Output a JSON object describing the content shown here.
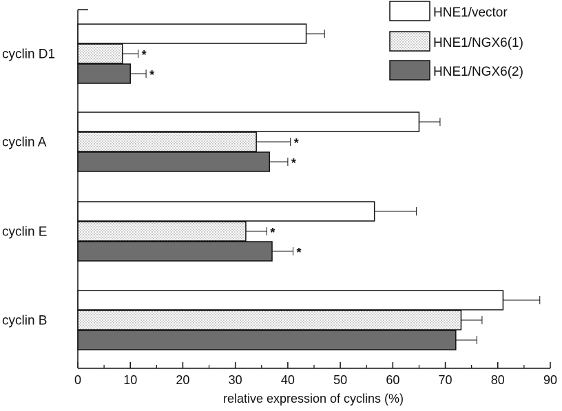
{
  "chart_data": {
    "type": "bar",
    "orientation": "horizontal",
    "categories": [
      "cyclin D1",
      "cyclin A",
      "cyclin E",
      "cyclin B"
    ],
    "series": [
      {
        "name": "HNE1/vector",
        "values": [
          43.5,
          65.0,
          56.5,
          81.0
        ],
        "errors": [
          3.5,
          4.0,
          8.0,
          7.0
        ],
        "significant": [
          false,
          false,
          false,
          false
        ]
      },
      {
        "name": "HNE1/NGX6(1)",
        "values": [
          8.5,
          34.0,
          32.0,
          73.0
        ],
        "errors": [
          3.0,
          6.5,
          4.0,
          4.0
        ],
        "significant": [
          true,
          true,
          true,
          false
        ]
      },
      {
        "name": "HNE1/NGX6(2)",
        "values": [
          10.0,
          36.5,
          37.0,
          72.0
        ],
        "errors": [
          3.0,
          3.5,
          4.0,
          4.0
        ],
        "significant": [
          true,
          true,
          true,
          false
        ]
      }
    ],
    "significance_marker": "*",
    "xlabel": "relative expression of cyclins (%)",
    "ylabel": "",
    "xlim": [
      0,
      90
    ],
    "xticks": [
      0,
      10,
      20,
      30,
      40,
      50,
      60,
      70,
      80,
      90
    ],
    "grid": false,
    "legend_position": "top-right",
    "colors": {
      "HNE1/vector": "#ffffff",
      "HNE1/NGX6(1)": "#e4e4e4",
      "HNE1/NGX6(2)": "#6e6e6e",
      "axis": "#111111"
    }
  }
}
